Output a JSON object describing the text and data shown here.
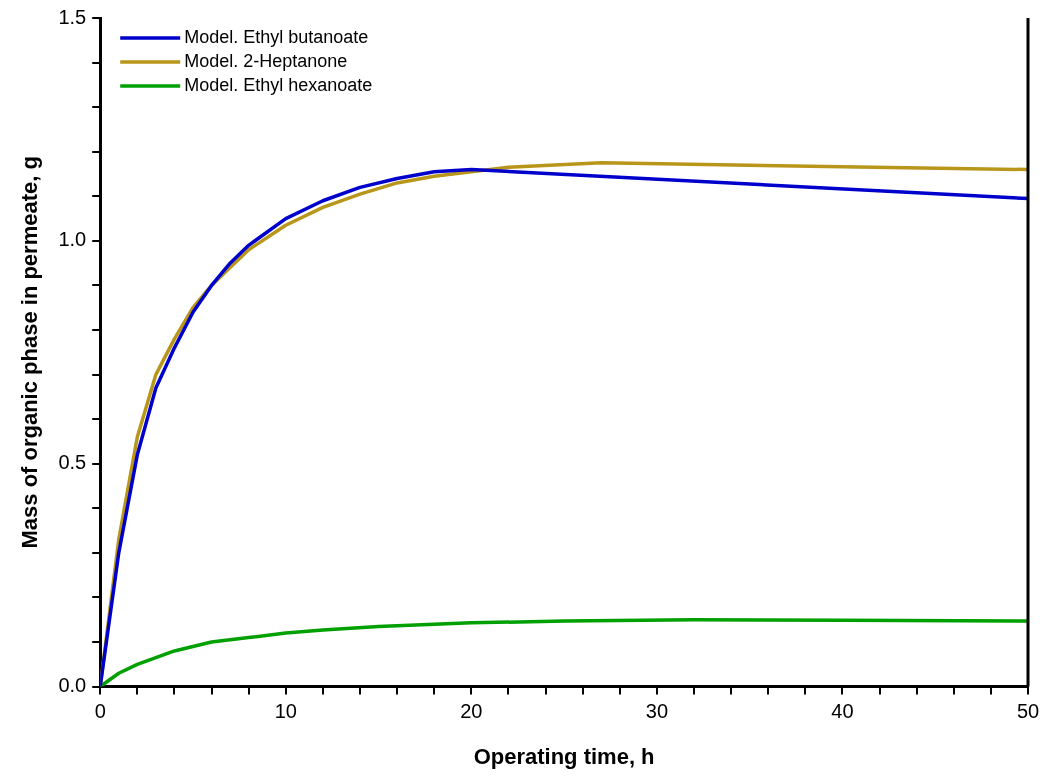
{
  "chart_data": {
    "type": "line",
    "xlabel": "Operating time, h",
    "ylabel": "Mass of organic phase in permeate, g",
    "xlim": [
      0,
      50
    ],
    "ylim": [
      0,
      1.5
    ],
    "xticks": [
      0,
      {
        "value": 2,
        "label": null
      },
      {
        "value": 4,
        "label": null
      },
      {
        "value": 6,
        "label": null
      },
      {
        "value": 8,
        "label": null
      },
      10,
      {
        "value": 12,
        "label": null
      },
      {
        "value": 14,
        "label": null
      },
      {
        "value": 16,
        "label": null
      },
      {
        "value": 18,
        "label": null
      },
      20,
      {
        "value": 22,
        "label": null
      },
      {
        "value": 24,
        "label": null
      },
      {
        "value": 26,
        "label": null
      },
      {
        "value": 28,
        "label": null
      },
      30,
      {
        "value": 32,
        "label": null
      },
      {
        "value": 34,
        "label": null
      },
      {
        "value": 36,
        "label": null
      },
      {
        "value": 38,
        "label": null
      },
      40,
      {
        "value": 42,
        "label": null
      },
      {
        "value": 44,
        "label": null
      },
      {
        "value": 46,
        "label": null
      },
      {
        "value": 48,
        "label": null
      },
      50
    ],
    "yticks": [
      {
        "value": 0,
        "label": "0.0"
      },
      {
        "value": 0.1,
        "label": null
      },
      {
        "value": 0.2,
        "label": null
      },
      {
        "value": 0.3,
        "label": null
      },
      {
        "value": 0.4,
        "label": null
      },
      {
        "value": 0.5,
        "label": "0.5"
      },
      {
        "value": 0.6,
        "label": null
      },
      {
        "value": 0.7,
        "label": null
      },
      {
        "value": 0.8,
        "label": null
      },
      {
        "value": 0.9,
        "label": null
      },
      {
        "value": 1,
        "label": "1.0"
      },
      {
        "value": 1.1,
        "label": null
      },
      {
        "value": 1.2,
        "label": null
      },
      {
        "value": 1.3,
        "label": null
      },
      {
        "value": 1.4,
        "label": null
      },
      {
        "value": 1.5,
        "label": "1.5"
      }
    ],
    "grid": false,
    "legend": "top left",
    "marker": "none",
    "line_style": "solid",
    "series": [
      {
        "name": "Model. Ethyl butanoate",
        "color": "#0000cc",
        "x": [
          0,
          1,
          2,
          3,
          4,
          5,
          6,
          7,
          8,
          10,
          12,
          14,
          16,
          18,
          20,
          50
        ],
        "values": [
          0,
          0.3,
          0.52,
          0.67,
          0.76,
          0.84,
          0.9,
          0.95,
          0.99,
          1.05,
          1.09,
          1.12,
          1.14,
          1.155,
          1.16,
          1.095
        ]
      },
      {
        "name": "Model. 2-Heptanone",
        "color": "#b8961a",
        "x": [
          0,
          1,
          2,
          3,
          4,
          5,
          6,
          7,
          8,
          10,
          12,
          14,
          16,
          18,
          20,
          22,
          27,
          50
        ],
        "values": [
          0,
          0.33,
          0.56,
          0.7,
          0.78,
          0.85,
          0.9,
          0.94,
          0.98,
          1.035,
          1.075,
          1.105,
          1.13,
          1.145,
          1.155,
          1.165,
          1.175,
          1.16
        ]
      },
      {
        "name": "Model. Ethyl hexanoate",
        "color": "#00a000",
        "x": [
          0,
          1,
          2,
          3,
          4,
          5,
          6,
          8,
          10,
          12,
          15,
          20,
          25,
          32,
          40,
          50
        ],
        "values": [
          0,
          0.03,
          0.05,
          0.065,
          0.08,
          0.09,
          0.1,
          0.11,
          0.12,
          0.127,
          0.135,
          0.143,
          0.147,
          0.15,
          0.149,
          0.147
        ]
      }
    ]
  }
}
